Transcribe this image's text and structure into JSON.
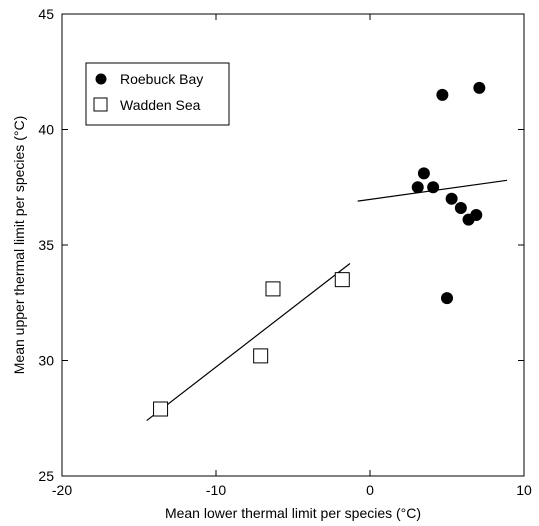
{
  "chart_data": {
    "type": "scatter",
    "xlabel": "Mean lower thermal limit per species (°C)",
    "ylabel": "Mean upper thermal limit per species (°C)",
    "xlim": [
      -20,
      10
    ],
    "ylim": [
      25,
      45
    ],
    "xticks": [
      -20,
      -10,
      0,
      10
    ],
    "yticks": [
      25,
      30,
      35,
      40,
      45
    ],
    "grid": false,
    "legend_position": "top-left",
    "series": [
      {
        "name": "Roebuck Bay",
        "marker": "filled-circle",
        "color": "#000000",
        "points": [
          {
            "x": 3.1,
            "y": 37.5
          },
          {
            "x": 3.5,
            "y": 38.1
          },
          {
            "x": 4.1,
            "y": 37.5
          },
          {
            "x": 4.7,
            "y": 41.5
          },
          {
            "x": 5.0,
            "y": 32.7
          },
          {
            "x": 5.3,
            "y": 37.0
          },
          {
            "x": 5.9,
            "y": 36.6
          },
          {
            "x": 6.4,
            "y": 36.1
          },
          {
            "x": 6.9,
            "y": 36.3
          },
          {
            "x": 7.1,
            "y": 41.8
          }
        ],
        "fit": [
          {
            "x": -0.8,
            "y": 36.9
          },
          {
            "x": 8.9,
            "y": 37.8
          }
        ]
      },
      {
        "name": "Wadden Sea",
        "marker": "open-square",
        "color": "#000000",
        "points": [
          {
            "x": -13.6,
            "y": 27.9
          },
          {
            "x": -7.1,
            "y": 30.2
          },
          {
            "x": -6.3,
            "y": 33.1
          },
          {
            "x": -1.8,
            "y": 33.5
          }
        ],
        "fit": [
          {
            "x": -14.5,
            "y": 27.4
          },
          {
            "x": -1.3,
            "y": 34.2
          }
        ]
      }
    ]
  }
}
